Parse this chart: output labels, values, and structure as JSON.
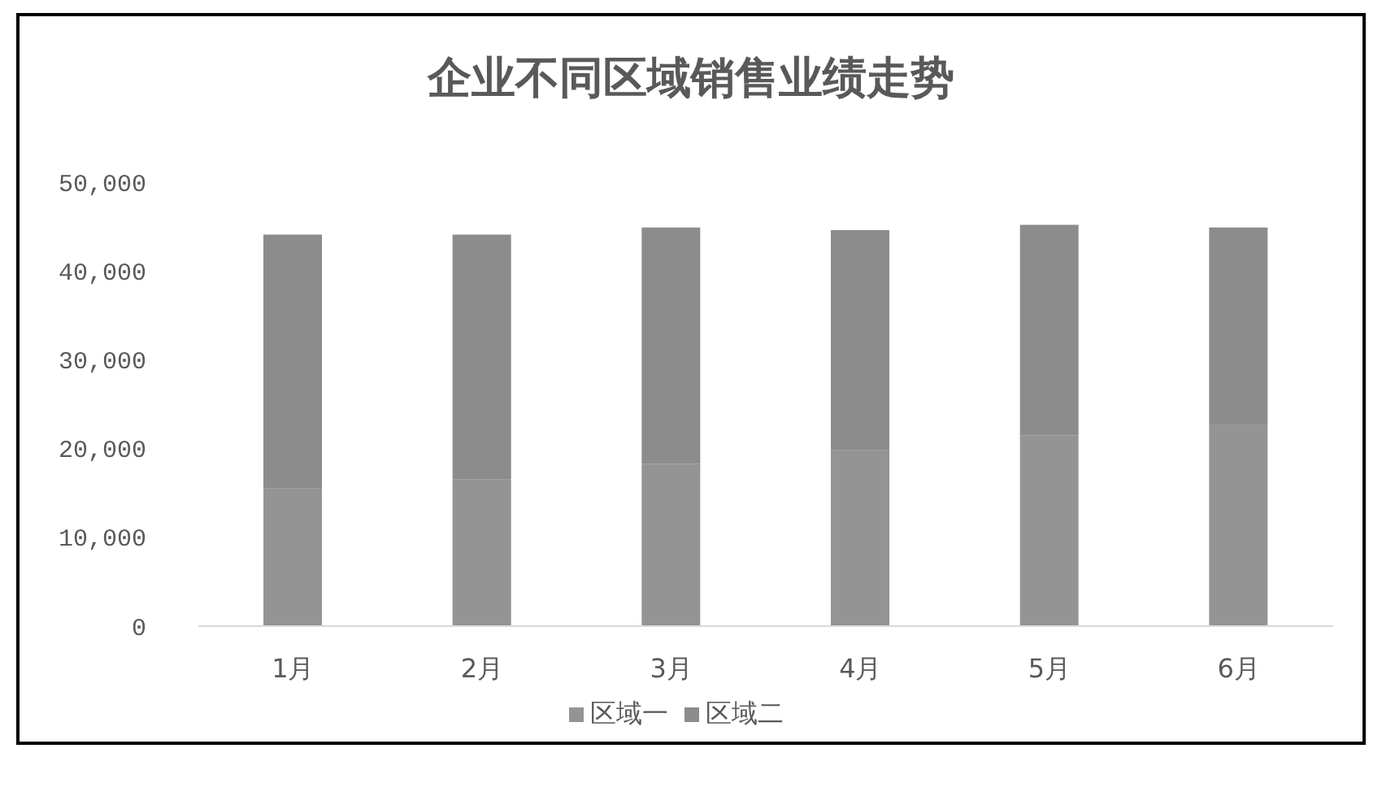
{
  "chart_data": {
    "type": "bar",
    "title": "企业不同区域销售业绩走势",
    "categories": [
      "1月",
      "2月",
      "3月",
      "4月",
      "5月",
      "6月"
    ],
    "series": [
      {
        "name": "区域一",
        "color": "#949494",
        "values": [
          15500,
          16500,
          18300,
          19800,
          21500,
          22800
        ]
      },
      {
        "name": "区域二",
        "color": "#8c8c8c",
        "values": [
          28600,
          27600,
          26600,
          24800,
          23700,
          22100
        ]
      }
    ],
    "stacked": true,
    "ylim": [
      0,
      50000
    ],
    "yticks": [
      0,
      {
        "value": 10000,
        "label": "10,000"
      },
      {
        "value": 20000,
        "label": "20,000"
      },
      {
        "value": 30000,
        "label": "30,000"
      },
      {
        "value": 40000,
        "label": "40,000"
      },
      {
        "value": 50000,
        "label": "50,000"
      }
    ],
    "legend": "bottom"
  }
}
